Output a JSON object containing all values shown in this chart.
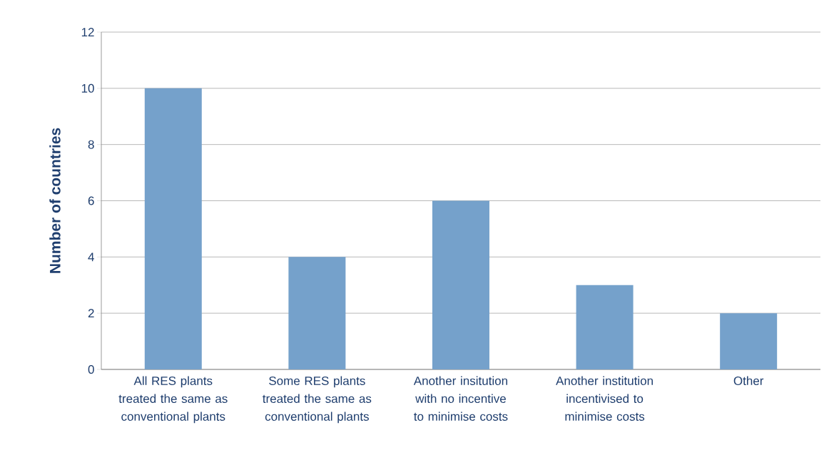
{
  "chart_data": {
    "type": "bar",
    "ylabel": "Number of countries",
    "categories": [
      "All RES plants treated the same as conventional plants",
      "Some RES plants treated the same as conventional plants",
      "Another insitution with no incentive to minimise costs",
      "Another institution incentivised to minimise costs",
      "Other"
    ],
    "values": [
      10,
      4,
      6,
      3,
      2
    ],
    "color": "#75a1cb",
    "ylim": [
      0,
      12
    ],
    "yticks": [
      0,
      2,
      4,
      6,
      8,
      10,
      12
    ],
    "grid": "y"
  }
}
